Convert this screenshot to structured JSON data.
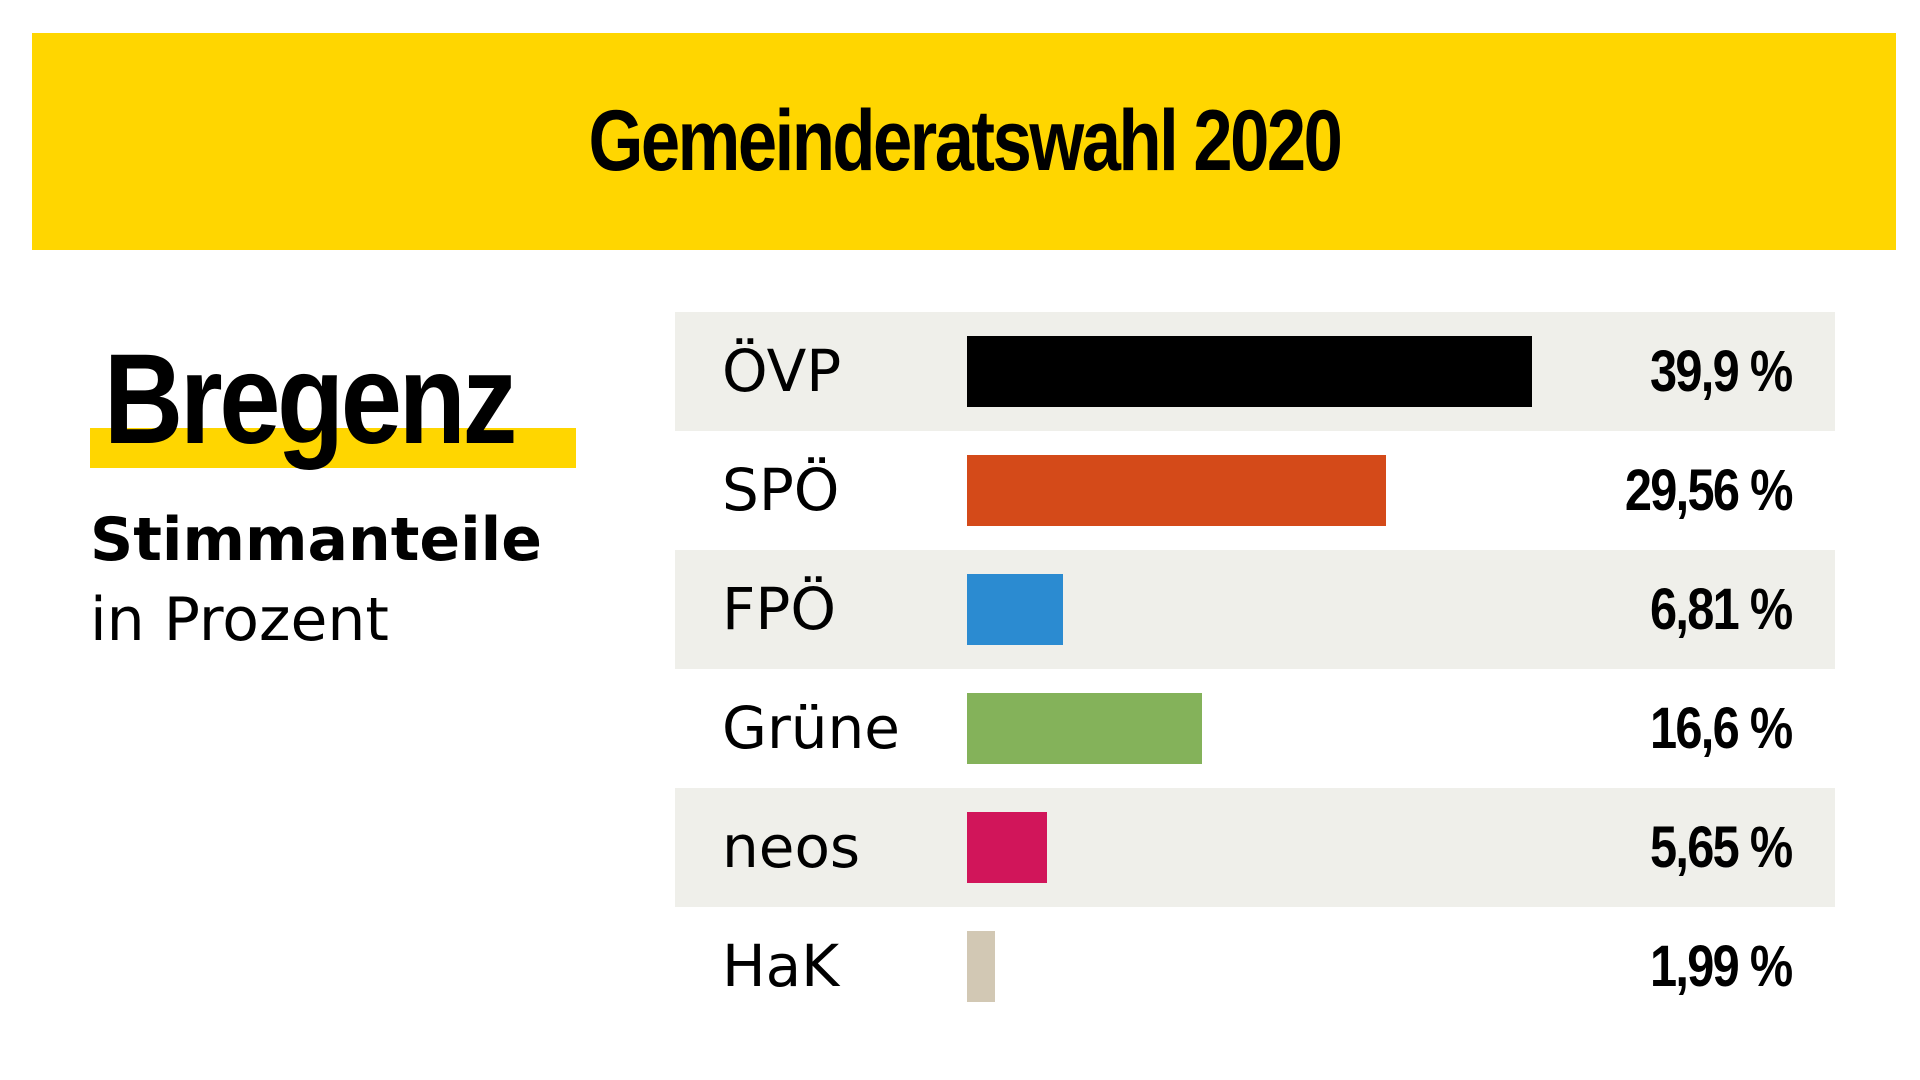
{
  "colors": {
    "banner": "#ffd600",
    "highlight": "#ffd600",
    "row_shade": "#efefea"
  },
  "header": {
    "title": "Gemeinderatswahl 2020"
  },
  "left": {
    "city": "Bregenz",
    "subtitle": "Stimmanteile",
    "subtitle2": "in Prozent"
  },
  "chart_data": {
    "type": "bar",
    "orientation": "horizontal",
    "title": "Gemeinderatswahl 2020",
    "categories": [
      "ÖVP",
      "SPÖ",
      "FPÖ",
      "Grüne",
      "neos",
      "HaK"
    ],
    "values": [
      39.9,
      29.56,
      6.81,
      16.6,
      5.65,
      1.99
    ],
    "value_labels": [
      "39,9 %",
      "29,56 %",
      "6,81 %",
      "16,6 %",
      "5,65 %",
      "1,99 %"
    ],
    "colors": [
      "#000000",
      "#d44a19",
      "#2b8bd1",
      "#84b25a",
      "#d1155a",
      "#d2c8b4"
    ],
    "xlim": [
      0,
      39.9
    ],
    "grid": false,
    "legend": "none"
  }
}
